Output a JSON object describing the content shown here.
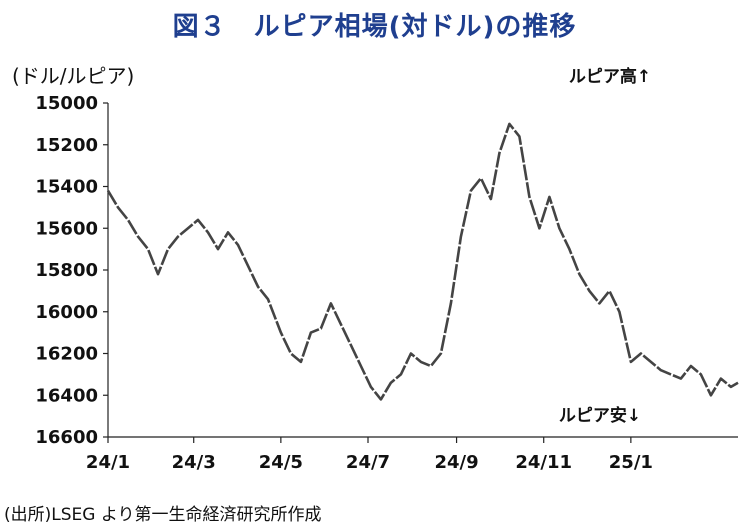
{
  "chart_data": {
    "type": "line",
    "title": "図３　ルピア相場(対ドル)の推移",
    "ylabel": "(ドル/ルピア)",
    "note": "(出所)LSEG より第一生命経済研究所作成",
    "y_inverted": true,
    "ylim": [
      15000,
      16600
    ],
    "y_ticks": [
      15000,
      15200,
      15400,
      15600,
      15800,
      16000,
      16200,
      16400,
      16600
    ],
    "x_ticks": [
      {
        "date": "2024-01-01",
        "label": "24/1"
      },
      {
        "date": "2024-03-01",
        "label": "24/3"
      },
      {
        "date": "2024-05-01",
        "label": "24/5"
      },
      {
        "date": "2024-07-01",
        "label": "24/7"
      },
      {
        "date": "2024-09-01",
        "label": "24/9"
      },
      {
        "date": "2024-11-01",
        "label": "24/11"
      },
      {
        "date": "2025-01-01",
        "label": "25/1"
      }
    ],
    "xlim": [
      "2024-01-01",
      "2025-03-17"
    ],
    "annotations": {
      "top": "ルピア高↑",
      "bottom": "ルピア安↓"
    },
    "grid": false,
    "line_color": "#444444",
    "series": [
      {
        "name": "",
        "points": [
          [
            "2024-01-01",
            15420
          ],
          [
            "2024-01-08",
            15500
          ],
          [
            "2024-01-15",
            15560
          ],
          [
            "2024-01-22",
            15640
          ],
          [
            "2024-01-29",
            15700
          ],
          [
            "2024-02-05",
            15820
          ],
          [
            "2024-02-12",
            15700
          ],
          [
            "2024-02-19",
            15640
          ],
          [
            "2024-02-26",
            15600
          ],
          [
            "2024-03-04",
            15560
          ],
          [
            "2024-03-11",
            15620
          ],
          [
            "2024-03-18",
            15700
          ],
          [
            "2024-03-25",
            15620
          ],
          [
            "2024-04-01",
            15680
          ],
          [
            "2024-04-08",
            15780
          ],
          [
            "2024-04-15",
            15880
          ],
          [
            "2024-04-22",
            15940
          ],
          [
            "2024-05-01",
            16100
          ],
          [
            "2024-05-08",
            16200
          ],
          [
            "2024-05-15",
            16240
          ],
          [
            "2024-05-22",
            16100
          ],
          [
            "2024-05-29",
            16080
          ],
          [
            "2024-06-05",
            15960
          ],
          [
            "2024-06-12",
            16060
          ],
          [
            "2024-06-19",
            16160
          ],
          [
            "2024-06-26",
            16260
          ],
          [
            "2024-07-03",
            16360
          ],
          [
            "2024-07-10",
            16420
          ],
          [
            "2024-07-17",
            16340
          ],
          [
            "2024-07-24",
            16300
          ],
          [
            "2024-07-31",
            16200
          ],
          [
            "2024-08-07",
            16240
          ],
          [
            "2024-08-14",
            16260
          ],
          [
            "2024-08-21",
            16200
          ],
          [
            "2024-08-28",
            15960
          ],
          [
            "2024-09-04",
            15640
          ],
          [
            "2024-09-11",
            15420
          ],
          [
            "2024-09-18",
            15360
          ],
          [
            "2024-09-25",
            15460
          ],
          [
            "2024-10-01",
            15240
          ],
          [
            "2024-10-08",
            15100
          ],
          [
            "2024-10-15",
            15160
          ],
          [
            "2024-10-22",
            15450
          ],
          [
            "2024-10-29",
            15600
          ],
          [
            "2024-11-05",
            15450
          ],
          [
            "2024-11-12",
            15600
          ],
          [
            "2024-11-19",
            15700
          ],
          [
            "2024-11-26",
            15820
          ],
          [
            "2024-12-03",
            15900
          ],
          [
            "2024-12-10",
            15960
          ],
          [
            "2024-12-17",
            15900
          ],
          [
            "2024-12-24",
            16000
          ],
          [
            "2025-01-01",
            16240
          ],
          [
            "2025-01-08",
            16200
          ],
          [
            "2025-01-15",
            16240
          ],
          [
            "2025-01-22",
            16280
          ],
          [
            "2025-01-29",
            16300
          ],
          [
            "2025-02-05",
            16320
          ],
          [
            "2025-02-12",
            16260
          ],
          [
            "2025-02-19",
            16300
          ],
          [
            "2025-02-26",
            16400
          ],
          [
            "2025-03-05",
            16320
          ],
          [
            "2025-03-12",
            16360
          ],
          [
            "2025-03-17",
            16340
          ]
        ]
      }
    ]
  }
}
